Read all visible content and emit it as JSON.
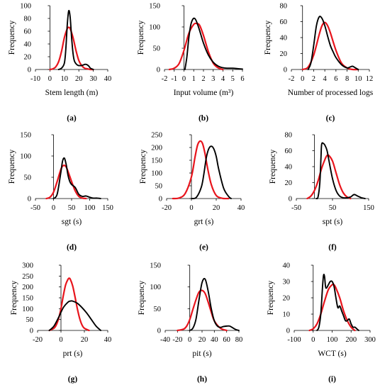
{
  "colors": {
    "observed": "#000000",
    "fitted": "#e8141c",
    "axis": "#000000"
  },
  "chart_data": [
    {
      "panel": "(a)",
      "type": "line",
      "xlabel": "Stem length (m)",
      "ylabel": "Frequency",
      "xlim": [
        -10,
        40
      ],
      "ylim": [
        0,
        100
      ],
      "xticks": [
        "-10",
        "0",
        "10",
        "20",
        "30",
        "40"
      ],
      "yticks": [
        "0",
        "20",
        "40",
        "60",
        "80",
        "100"
      ],
      "series": [
        {
          "role": "observed",
          "x": [
            6,
            8,
            10,
            11,
            12,
            13,
            14,
            15,
            16,
            17,
            19,
            21,
            23,
            24,
            25,
            26,
            27,
            28,
            29,
            30
          ],
          "y": [
            0,
            2,
            10,
            32,
            70,
            92,
            82,
            50,
            25,
            13,
            7,
            6,
            7,
            8,
            8,
            7,
            5,
            2,
            1,
            0
          ]
        },
        {
          "role": "fitted",
          "x": [
            0,
            2,
            4,
            6,
            8,
            10,
            12,
            13,
            14,
            16,
            18,
            20,
            22,
            24,
            26,
            28,
            30
          ],
          "y": [
            0,
            1,
            4,
            12,
            28,
            50,
            64,
            66,
            64,
            50,
            30,
            14,
            6,
            2,
            1,
            0,
            0
          ]
        }
      ]
    },
    {
      "panel": "(b)",
      "type": "line",
      "xlabel": "Input volume (m³)",
      "ylabel": "Frequency",
      "xlim": [
        -2,
        6
      ],
      "ylim": [
        0,
        150
      ],
      "xticks": [
        "-2",
        "-1",
        "0",
        "1",
        "2",
        "3",
        "4",
        "5",
        "6"
      ],
      "yticks": [
        "0",
        "50",
        "100",
        "150"
      ],
      "series": [
        {
          "role": "observed",
          "x": [
            0.1,
            0.3,
            0.5,
            0.7,
            0.9,
            1.1,
            1.3,
            1.6,
            2.0,
            2.5,
            3.0,
            3.5,
            4.0,
            4.5,
            5.0,
            5.5,
            6.0
          ],
          "y": [
            0,
            30,
            75,
            105,
            118,
            120,
            112,
            92,
            62,
            34,
            17,
            8,
            4,
            3,
            3,
            2,
            1
          ]
        },
        {
          "role": "fitted",
          "x": [
            -1.5,
            -1,
            -0.5,
            0,
            0.5,
            1,
            1.3,
            1.6,
            2,
            2.5,
            3,
            3.5,
            4
          ],
          "y": [
            0,
            3,
            14,
            45,
            85,
            106,
            108,
            104,
            80,
            42,
            15,
            4,
            0
          ]
        }
      ]
    },
    {
      "panel": "(c)",
      "type": "line",
      "xlabel": "Number of processed logs",
      "ylabel": "Frequency",
      "xlim": [
        -2,
        12
      ],
      "ylim": [
        0,
        80
      ],
      "xticks": [
        "-2",
        "0",
        "2",
        "4",
        "6",
        "8",
        "10",
        "12"
      ],
      "yticks": [
        "0",
        "20",
        "40",
        "60",
        "80"
      ],
      "series": [
        {
          "role": "observed",
          "x": [
            1,
            1.5,
            2,
            2.5,
            3,
            3.5,
            4,
            4.5,
            5,
            5.5,
            6,
            7,
            8,
            8.5,
            9,
            9.5,
            10
          ],
          "y": [
            0,
            8,
            30,
            55,
            66,
            64,
            55,
            42,
            30,
            22,
            15,
            6,
            2,
            3,
            4,
            2,
            0
          ]
        },
        {
          "role": "fitted",
          "x": [
            0,
            1,
            2,
            3,
            3.5,
            4,
            4.5,
            5,
            6,
            7,
            8,
            9,
            10
          ],
          "y": [
            0,
            3,
            18,
            44,
            55,
            59,
            55,
            46,
            24,
            8,
            2,
            0,
            0
          ]
        }
      ]
    },
    {
      "panel": "(d)",
      "type": "line",
      "xlabel": "sgt (s)",
      "ylabel": "Frequency",
      "xlim": [
        -50,
        150
      ],
      "ylim": [
        0,
        150
      ],
      "xticks": [
        "-50",
        "0",
        "50",
        "100",
        "150"
      ],
      "yticks": [
        "0",
        "50",
        "100",
        "150"
      ],
      "series": [
        {
          "role": "observed",
          "x": [
            0,
            10,
            20,
            25,
            30,
            35,
            40,
            45,
            50,
            60,
            70,
            80,
            90,
            100,
            110,
            120,
            130
          ],
          "y": [
            0,
            10,
            60,
            88,
            95,
            80,
            55,
            40,
            33,
            26,
            10,
            5,
            6,
            3,
            1,
            1,
            0
          ]
        },
        {
          "role": "fitted",
          "x": [
            -20,
            -10,
            0,
            10,
            20,
            25,
            30,
            35,
            40,
            50,
            60,
            70,
            80,
            90
          ],
          "y": [
            0,
            3,
            15,
            40,
            68,
            76,
            78,
            74,
            64,
            40,
            18,
            5,
            1,
            0
          ]
        }
      ]
    },
    {
      "panel": "(e)",
      "type": "line",
      "xlabel": "grt (s)",
      "ylabel": "Frequency",
      "xlim": [
        -20,
        40
      ],
      "ylim": [
        0,
        250
      ],
      "xticks": [
        "-20",
        "0",
        "20",
        "40"
      ],
      "yticks": [
        "0",
        "50",
        "100",
        "150",
        "200",
        "250"
      ],
      "series": [
        {
          "role": "observed",
          "x": [
            0,
            4,
            8,
            10,
            12,
            14,
            16,
            18,
            20,
            22,
            26,
            30,
            32
          ],
          "y": [
            0,
            5,
            45,
            95,
            160,
            195,
            205,
            195,
            165,
            115,
            40,
            8,
            0
          ]
        },
        {
          "role": "fitted",
          "x": [
            -15,
            -10,
            -5,
            0,
            3,
            5,
            7,
            9,
            11,
            13,
            16,
            20,
            25,
            30
          ],
          "y": [
            0,
            2,
            20,
            85,
            165,
            210,
            225,
            215,
            175,
            120,
            55,
            12,
            1,
            0
          ]
        }
      ]
    },
    {
      "panel": "(f)",
      "type": "line",
      "xlabel": "spt (s)",
      "ylabel": "Frequency",
      "xlim": [
        -50,
        150
      ],
      "ylim": [
        0,
        80
      ],
      "xticks": [
        "-50",
        "50",
        "150"
      ],
      "yticks": [
        "0",
        "20",
        "40",
        "60",
        "80"
      ],
      "series": [
        {
          "role": "observed",
          "x": [
            5,
            10,
            15,
            18,
            20,
            25,
            30,
            35,
            40,
            50,
            60,
            70,
            80,
            90,
            100,
            110,
            120,
            130,
            140
          ],
          "y": [
            0,
            2,
            20,
            50,
            68,
            69,
            66,
            60,
            48,
            25,
            10,
            3,
            1,
            1,
            2,
            5,
            3,
            1,
            0
          ]
        },
        {
          "role": "fitted",
          "x": [
            -20,
            -10,
            0,
            10,
            20,
            30,
            35,
            40,
            50,
            60,
            70,
            80,
            90,
            100
          ],
          "y": [
            0,
            3,
            10,
            22,
            38,
            50,
            54,
            54,
            47,
            32,
            17,
            7,
            2,
            0
          ]
        }
      ]
    },
    {
      "panel": "(g)",
      "type": "line",
      "xlabel": "prt (s)",
      "ylabel": "Frequency",
      "xlim": [
        -20,
        40
      ],
      "ylim": [
        0,
        300
      ],
      "xticks": [
        "-20",
        "0",
        "20",
        "40"
      ],
      "yticks": [
        "0",
        "50",
        "100",
        "150",
        "200",
        "250",
        "300"
      ],
      "series": [
        {
          "role": "observed",
          "x": [
            -10,
            -6,
            -2,
            2,
            6,
            8,
            10,
            14,
            18,
            22,
            26,
            30,
            34
          ],
          "y": [
            0,
            20,
            60,
            105,
            130,
            135,
            135,
            125,
            105,
            80,
            50,
            20,
            0
          ]
        },
        {
          "role": "fitted",
          "x": [
            -10,
            -6,
            -4,
            -2,
            0,
            2,
            4,
            6,
            7,
            8,
            10,
            12,
            14,
            16,
            18,
            20,
            24
          ],
          "y": [
            0,
            10,
            25,
            55,
            100,
            160,
            210,
            235,
            240,
            235,
            205,
            155,
            100,
            55,
            25,
            10,
            0
          ]
        }
      ]
    },
    {
      "panel": "(h)",
      "type": "line",
      "xlabel": "pit (s)",
      "ylabel": "Frequency",
      "xlim": [
        -40,
        80
      ],
      "ylim": [
        0,
        150
      ],
      "xticks": [
        "-40",
        "-20",
        "0",
        "20",
        "40",
        "60",
        "80"
      ],
      "yticks": [
        "0",
        "50",
        "100",
        "150"
      ],
      "series": [
        {
          "role": "observed",
          "x": [
            0,
            5,
            10,
            15,
            20,
            25,
            30,
            35,
            40,
            45,
            50,
            55,
            60,
            65,
            70,
            75,
            80
          ],
          "y": [
            0,
            5,
            25,
            70,
            110,
            118,
            90,
            50,
            22,
            10,
            7,
            9,
            10,
            10,
            6,
            2,
            0
          ]
        },
        {
          "role": "fitted",
          "x": [
            -20,
            -10,
            -5,
            0,
            5,
            10,
            15,
            20,
            25,
            30,
            35,
            40,
            50,
            60
          ],
          "y": [
            0,
            3,
            10,
            25,
            48,
            70,
            88,
            92,
            85,
            65,
            42,
            22,
            5,
            0
          ]
        }
      ]
    },
    {
      "panel": "(i)",
      "type": "line",
      "xlabel": "WCT (s)",
      "ylabel": "Frequency",
      "xlim": [
        -100,
        300
      ],
      "ylim": [
        0,
        40
      ],
      "xticks": [
        "-100",
        "0",
        "100",
        "200",
        "300"
      ],
      "yticks": [
        "0",
        "10",
        "20",
        "30",
        "40"
      ],
      "series": [
        {
          "role": "observed",
          "x": [
            20,
            30,
            40,
            50,
            55,
            60,
            65,
            70,
            80,
            90,
            100,
            110,
            120,
            130,
            140,
            150,
            160,
            170,
            180,
            190,
            200,
            210,
            220,
            230,
            240
          ],
          "y": [
            0,
            2,
            10,
            28,
            34,
            33,
            27,
            26,
            28,
            30,
            30,
            27,
            20,
            14,
            15,
            12,
            9,
            6,
            6,
            7,
            4,
            2,
            2,
            1,
            0
          ]
        },
        {
          "role": "fitted",
          "x": [
            -20,
            0,
            20,
            40,
            60,
            80,
            100,
            110,
            120,
            140,
            160,
            180,
            200,
            220
          ],
          "y": [
            0,
            1,
            4,
            10,
            18,
            25,
            28,
            28,
            26,
            20,
            12,
            6,
            2,
            0
          ]
        }
      ]
    }
  ]
}
